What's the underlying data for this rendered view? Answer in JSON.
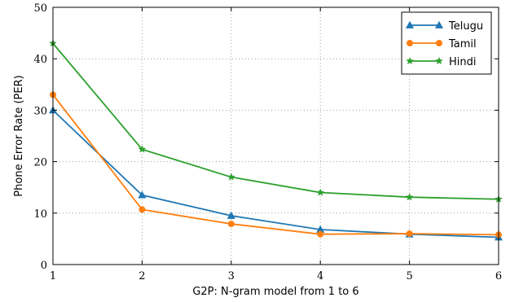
{
  "chart_data": {
    "type": "line",
    "x": [
      1,
      2,
      3,
      4,
      5,
      6
    ],
    "xlabel": "G2P: N-gram model from 1 to 6",
    "ylabel": "Phone Error Rate (PER)",
    "xlim": [
      1,
      6
    ],
    "ylim": [
      0,
      50
    ],
    "xticks": [
      "1",
      "2",
      "3",
      "4",
      "5",
      "6"
    ],
    "yticks": [
      "0",
      "10",
      "20",
      "30",
      "40",
      "50"
    ],
    "grid": true,
    "legend_position": "top-right",
    "series": [
      {
        "name": "Telugu",
        "color": "#1f77b4",
        "marker": "triangle",
        "values": [
          30,
          13.5,
          9.5,
          6.8,
          5.9,
          5.3
        ]
      },
      {
        "name": "Tamil",
        "color": "#ff7f0e",
        "marker": "circle",
        "values": [
          33,
          10.7,
          7.9,
          5.9,
          6.0,
          5.8
        ]
      },
      {
        "name": "Hindi",
        "color": "#2ca02c",
        "marker": "star",
        "values": [
          43,
          22.4,
          17.0,
          14.0,
          13.1,
          12.7
        ]
      }
    ]
  }
}
